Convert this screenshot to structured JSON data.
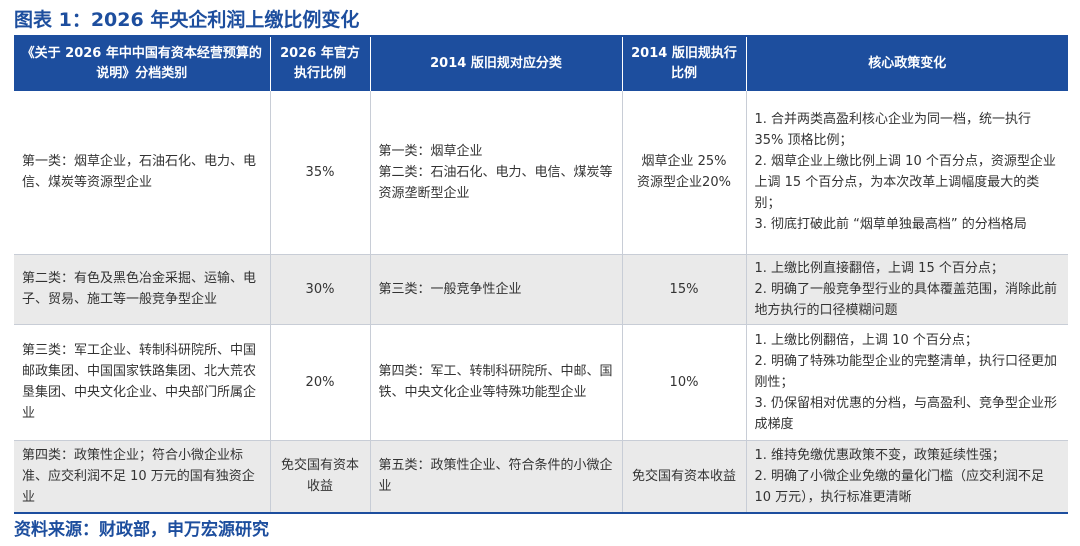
{
  "title": "图表 1：2026 年央企利润上缴比例变化",
  "source": "资料来源：财政部，申万宏源研究",
  "table": {
    "headers": [
      "《关于 2026 年中中国有资本经营预算的说明》分档类别",
      "2026 年官方执行比例",
      "2014 版旧规对应分类",
      "2014 版旧规执行比例",
      "核心政策变化"
    ],
    "rows": [
      {
        "category": "第一类：烟草企业，石油石化、电力、电信、煤炭等资源型企业",
        "rate2026": "35%",
        "old_category": "第一类：烟草企业\n第二类：石油石化、电力、电信、煤炭等资源垄断型企业",
        "old_rate": "烟草企业 25%\n资源型企业20%",
        "changes": "1. 合并两类高盈利核心企业为同一档，统一执行 35% 顶格比例；\n2. 烟草企业上缴比例上调 10 个百分点，资源型企业上调 15 个百分点，为本次改革上调幅度最大的类别；\n3. 彻底打破此前 “烟草单独最高档” 的分档格局"
      },
      {
        "category": "第二类：有色及黑色冶金采掘、运输、电子、贸易、施工等一般竞争型企业",
        "rate2026": "30%",
        "old_category": "第三类：一般竞争性企业",
        "old_rate": "15%",
        "changes": "1. 上缴比例直接翻倍，上调 15 个百分点；\n2. 明确了一般竞争型行业的具体覆盖范围，消除此前地方执行的口径模糊问题"
      },
      {
        "category": "第三类：军工企业、转制科研院所、中国邮政集团、中国国家铁路集团、北大荒农垦集团、中央文化企业、中央部门所属企业",
        "rate2026": "20%",
        "old_category": "第四类：军工、转制科研院所、中邮、国铁、中央文化企业等特殊功能型企业",
        "old_rate": "10%",
        "changes": "1. 上缴比例翻倍，上调 10 个百分点；\n2. 明确了特殊功能型企业的完整清单，执行口径更加刚性；\n3. 仍保留相对优惠的分档，与高盈利、竞争型企业形成梯度"
      },
      {
        "category": "第四类：政策性企业；符合小微企业标准、应交利润不足 10 万元的国有独资企业",
        "rate2026": "免交国有资本收益",
        "old_category": "第五类：政策性企业、符合条件的小微企业",
        "old_rate": "免交国有资本收益",
        "changes": "1. 维持免缴优惠政策不变，政策延续性强；\n2. 明确了小微企业免缴的量化门槛（应交利润不足 10 万元），执行标准更清晰"
      }
    ]
  }
}
